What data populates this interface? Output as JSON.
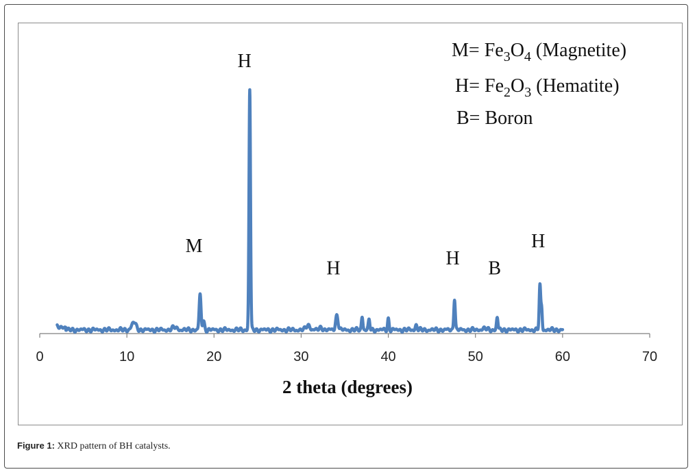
{
  "chart_data": {
    "type": "line",
    "title": "",
    "xlabel": "2 theta (degrees)",
    "ylabel": "",
    "xlim": [
      0,
      70
    ],
    "ylim": [
      0,
      100
    ],
    "x_ticks": [
      "0",
      "10",
      "20",
      "30",
      "40",
      "50",
      "60",
      "70"
    ],
    "grid": false,
    "line_color": "#4F81BD",
    "legend_text": [
      {
        "label": "M= ",
        "formula": [
          {
            "t": "Fe"
          },
          {
            "t": "3",
            "sub": true
          },
          {
            "t": "O"
          },
          {
            "t": "4",
            "sub": true
          },
          {
            "t": " (Magnetite)"
          }
        ]
      },
      {
        "label": "H= ",
        "formula": [
          {
            "t": "Fe"
          },
          {
            "t": "2",
            "sub": true
          },
          {
            "t": "O"
          },
          {
            "t": "3",
            "sub": true
          },
          {
            "t": " (Hematite)"
          }
        ]
      },
      {
        "label": "B= ",
        "formula": [
          {
            "t": "Boron"
          }
        ]
      }
    ],
    "baseline": 1.5,
    "peaks": [
      {
        "x": 10.8,
        "y": 4.5,
        "w": 0.35
      },
      {
        "x": 15.5,
        "y": 2.5,
        "w": 0.4
      },
      {
        "x": 18.4,
        "y": 15.5,
        "w": 0.15
      },
      {
        "x": 18.8,
        "y": 5.0,
        "w": 0.15
      },
      {
        "x": 24.1,
        "y": 99.0,
        "w": 0.12
      },
      {
        "x": 30.8,
        "y": 3.5,
        "w": 0.3
      },
      {
        "x": 32.3,
        "y": 2.5,
        "w": 0.25
      },
      {
        "x": 34.1,
        "y": 7.5,
        "w": 0.2
      },
      {
        "x": 37.0,
        "y": 7.0,
        "w": 0.12
      },
      {
        "x": 37.8,
        "y": 5.5,
        "w": 0.12
      },
      {
        "x": 40.0,
        "y": 6.0,
        "w": 0.12
      },
      {
        "x": 43.2,
        "y": 3.5,
        "w": 0.15
      },
      {
        "x": 47.6,
        "y": 14.5,
        "w": 0.12
      },
      {
        "x": 51.0,
        "y": 2.0,
        "w": 0.4
      },
      {
        "x": 52.5,
        "y": 6.5,
        "w": 0.12
      },
      {
        "x": 57.4,
        "y": 19.5,
        "w": 0.12
      },
      {
        "x": 57.6,
        "y": 10.0,
        "w": 0.1
      }
    ],
    "x_range": [
      2,
      60
    ],
    "annotations": [
      {
        "text": "M",
        "x": 17.7,
        "y": 33
      },
      {
        "text": "H",
        "x": 23.5,
        "y": 108
      },
      {
        "text": "H",
        "x": 33.7,
        "y": 24
      },
      {
        "text": "H",
        "x": 47.4,
        "y": 28
      },
      {
        "text": "B",
        "x": 52.2,
        "y": 24
      },
      {
        "text": "H",
        "x": 57.2,
        "y": 35
      }
    ]
  },
  "caption": {
    "lead": "Figure 1:",
    "text": " XRD pattern of BH catalysts."
  }
}
